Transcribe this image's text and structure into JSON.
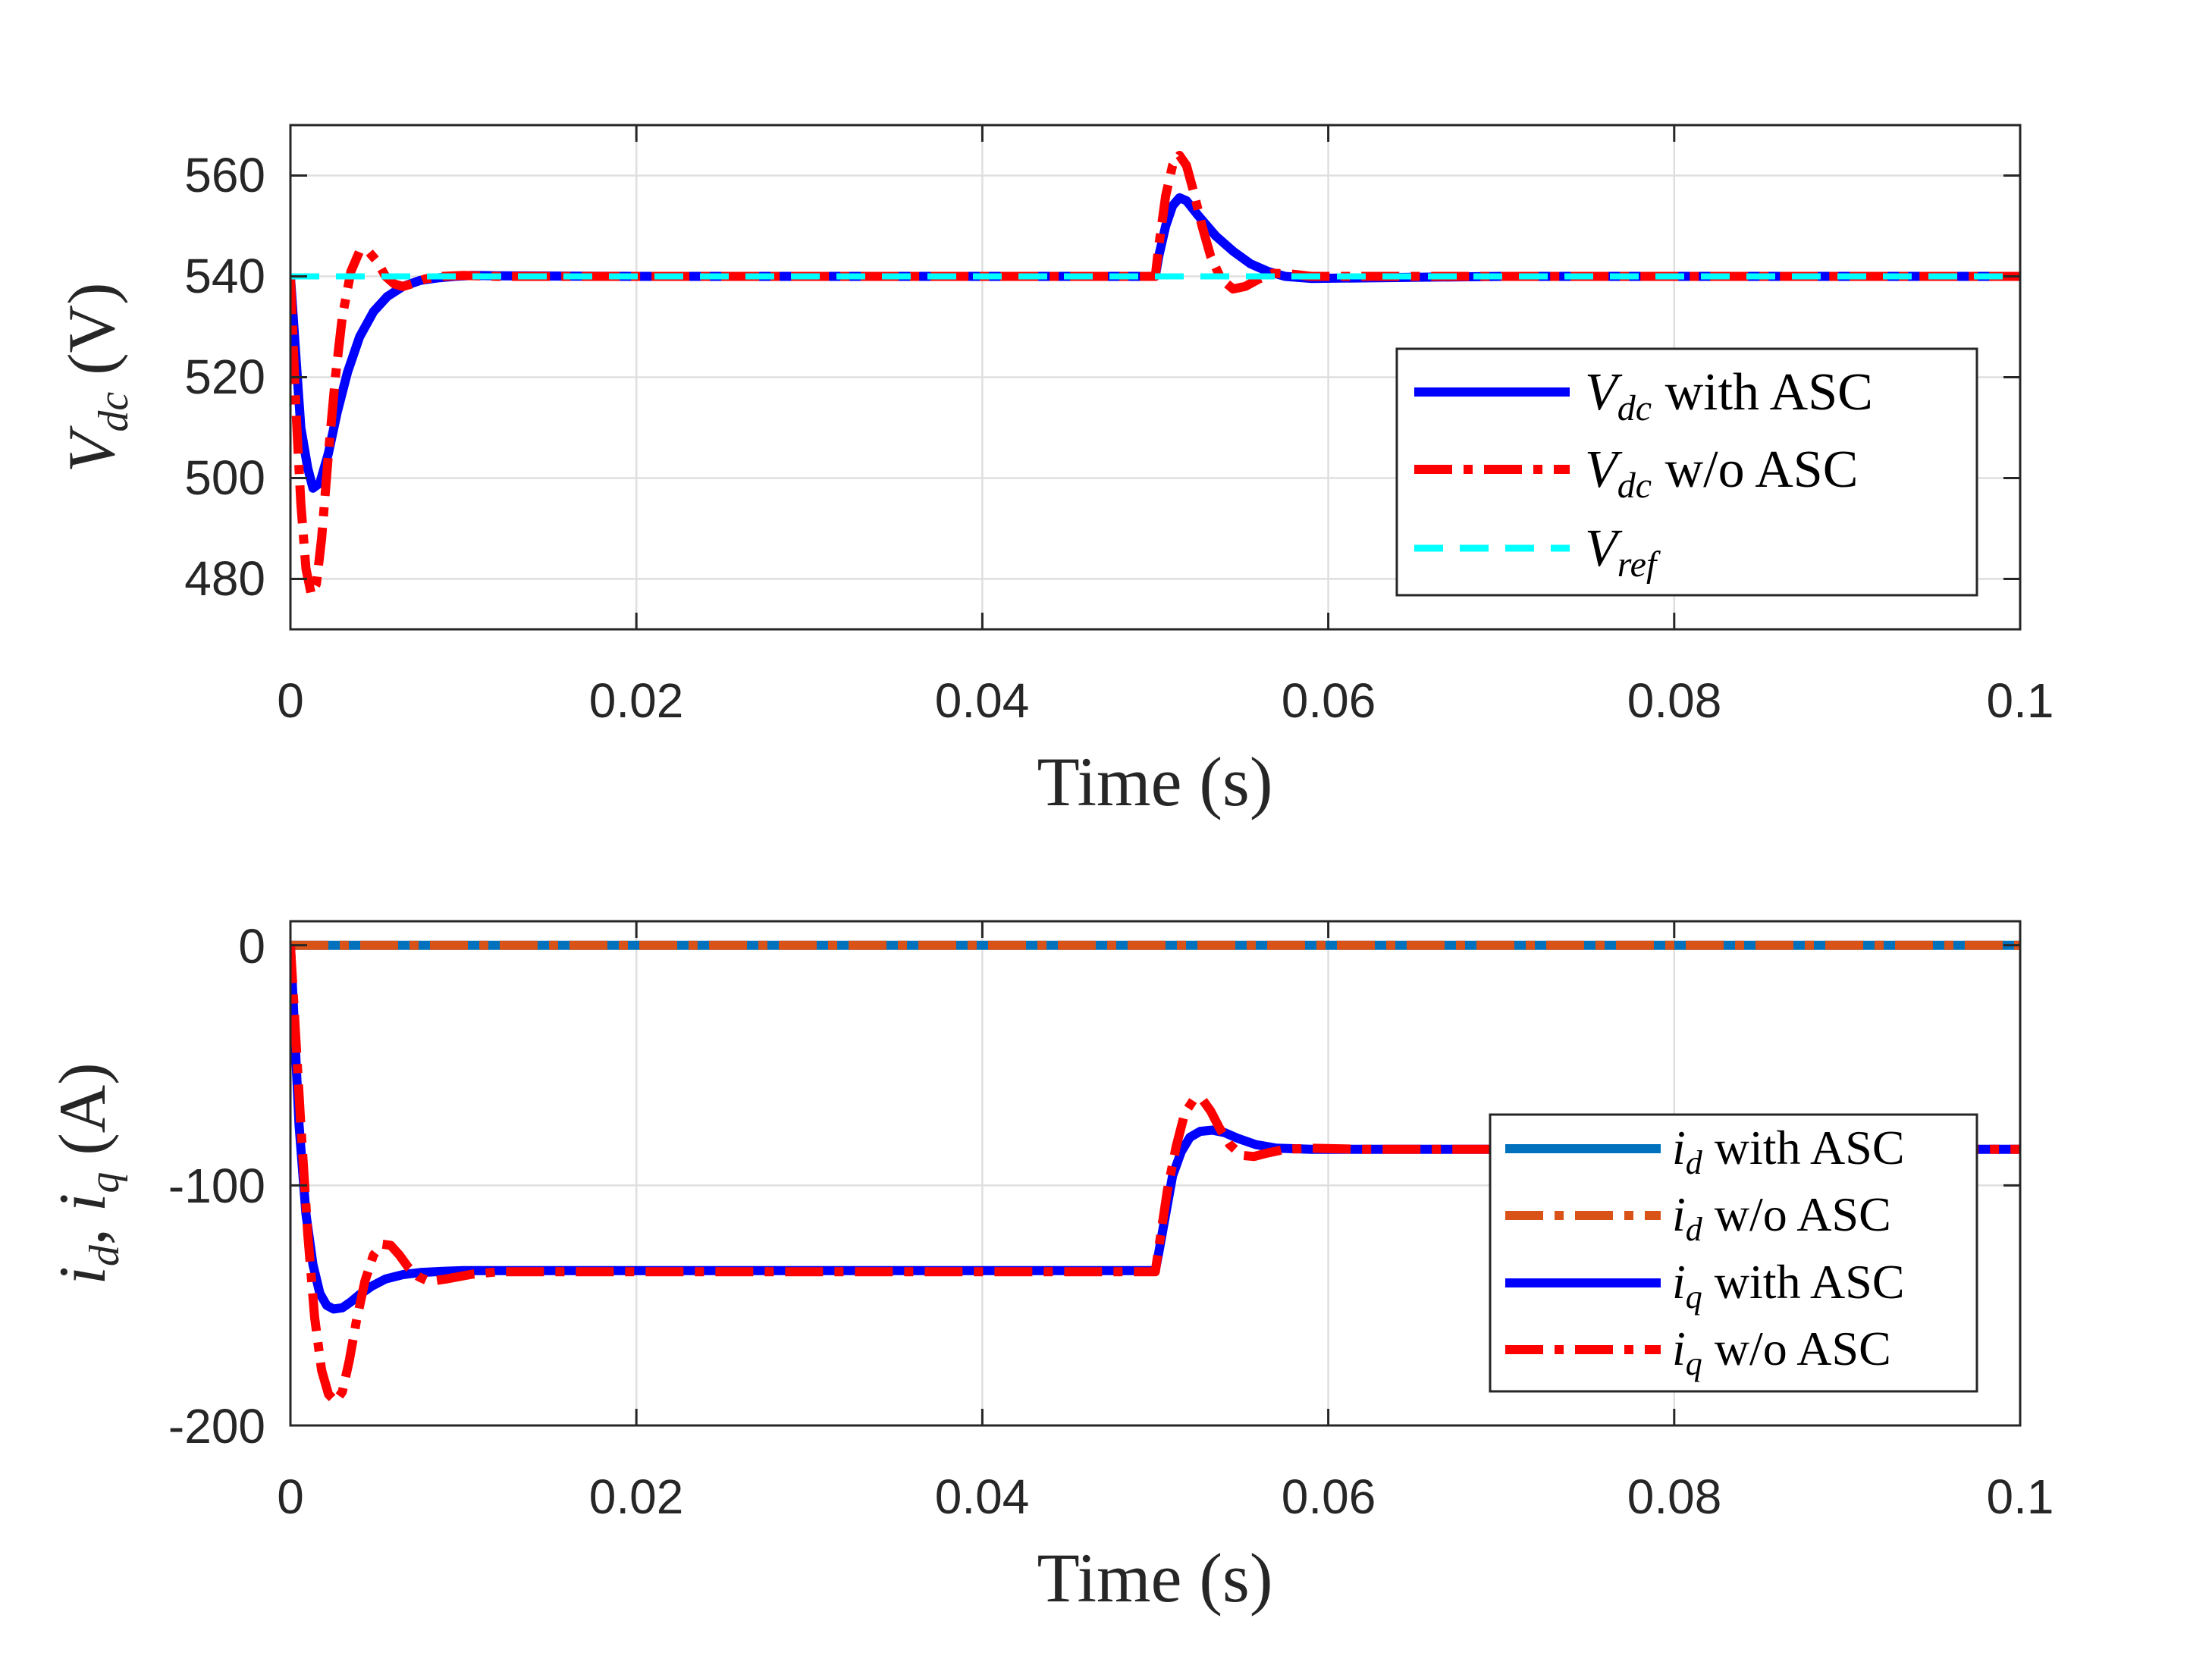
{
  "colors": {
    "vdc_with": "#0000ff",
    "vdc_wo": "#ff0000",
    "vref": "#00ffff",
    "id_with": "#0072bd",
    "id_wo": "#d95319",
    "iq_with": "#0000ff",
    "iq_wo": "#ff0000",
    "axis": "#262626",
    "grid": "#dfdfdf"
  },
  "chart_data": [
    {
      "type": "line",
      "xlabel": "Time (s)",
      "ylabel": {
        "main": "V",
        "sub": "dc",
        "unit": "(V)"
      },
      "xlim": [
        0,
        0.1
      ],
      "ylim": [
        470,
        570
      ],
      "xticks": [
        "0",
        "0.02",
        "0.04",
        "0.06",
        "0.08",
        "0.1"
      ],
      "yticks": [
        "480",
        "500",
        "520",
        "540",
        "560"
      ],
      "xtick_values": [
        0,
        0.02,
        0.04,
        0.06,
        0.08,
        0.1
      ],
      "ytick_values": [
        480,
        500,
        520,
        540,
        560
      ],
      "grid": true,
      "legend_position": "right-middle",
      "series": [
        {
          "name": "Vdc with ASC",
          "legend": {
            "sym": "V",
            "sub": "dc",
            "text": " with ASC"
          },
          "style": "solid",
          "color_key": "vdc_with",
          "x": [
            0,
            0.0003,
            0.0006,
            0.001,
            0.0013,
            0.0017,
            0.0022,
            0.0027,
            0.0033,
            0.004,
            0.0048,
            0.0056,
            0.0065,
            0.0075,
            0.0085,
            0.0095,
            0.0105,
            0.012,
            0.02,
            0.03,
            0.04,
            0.05,
            0.0502,
            0.0506,
            0.051,
            0.0514,
            0.0518,
            0.0525,
            0.0535,
            0.0545,
            0.0555,
            0.0565,
            0.0575,
            0.059,
            0.062,
            0.07,
            0.08,
            0.1
          ],
          "y": [
            540,
            525,
            510,
            502,
            498,
            499,
            505,
            513,
            521,
            528,
            533,
            536,
            538,
            539.2,
            539.7,
            540,
            540.2,
            540.1,
            540,
            540,
            540,
            540,
            544,
            550,
            554,
            555.6,
            555,
            552,
            548,
            545,
            542.5,
            541,
            540,
            539.6,
            539.7,
            540,
            540,
            540
          ]
        },
        {
          "name": "Vdc w/o ASC",
          "legend": {
            "sym": "V",
            "sub": "dc",
            "text": " w/o ASC"
          },
          "style": "dashdot",
          "color_key": "vdc_wo",
          "x": [
            0,
            0.0003,
            0.0006,
            0.0009,
            0.0012,
            0.0015,
            0.0018,
            0.0022,
            0.0026,
            0.003,
            0.0035,
            0.004,
            0.0045,
            0.005,
            0.0055,
            0.006,
            0.0065,
            0.007,
            0.0078,
            0.0088,
            0.01,
            0.012,
            0.02,
            0.03,
            0.04,
            0.05,
            0.0502,
            0.0506,
            0.051,
            0.0514,
            0.0518,
            0.0522,
            0.0527,
            0.0532,
            0.0538,
            0.0545,
            0.0552,
            0.056,
            0.0568,
            0.0578,
            0.059,
            0.062,
            0.07,
            0.08,
            0.1
          ],
          "y": [
            540,
            515,
            495,
            482,
            477,
            479,
            488,
            505,
            520,
            532,
            541,
            545,
            545,
            543,
            540,
            538.5,
            538,
            538.5,
            539.5,
            540,
            540.2,
            540,
            540,
            540,
            540,
            540,
            546,
            556,
            562,
            564,
            562,
            557,
            550,
            544,
            539.5,
            537.5,
            538,
            539.5,
            540.6,
            540.5,
            540,
            540,
            540,
            540,
            540
          ]
        },
        {
          "name": "Vref",
          "legend": {
            "sym": "V",
            "sub": "ref",
            "text": ""
          },
          "style": "dashed",
          "color_key": "vref",
          "x": [
            0,
            0.1
          ],
          "y": [
            540,
            540
          ]
        }
      ]
    },
    {
      "type": "line",
      "xlabel": "Time (s)",
      "ylabel": {
        "a": "i",
        "asub": "d",
        "sep": ", ",
        "b": "i",
        "bsub": "q",
        "unit": "(A)"
      },
      "xlim": [
        0,
        0.1
      ],
      "ylim": [
        -200,
        10
      ],
      "xticks": [
        "0",
        "0.02",
        "0.04",
        "0.06",
        "0.08",
        "0.1"
      ],
      "yticks": [
        "-200",
        "-100",
        "0"
      ],
      "xtick_values": [
        0,
        0.02,
        0.04,
        0.06,
        0.08,
        0.1
      ],
      "ytick_values": [
        -200,
        -100,
        0
      ],
      "grid": true,
      "legend_position": "right-middle",
      "series": [
        {
          "name": "id with ASC",
          "legend": {
            "sym": "i",
            "sub": "d",
            "text": " with ASC"
          },
          "style": "solid",
          "color_key": "id_with",
          "x": [
            0,
            0.1
          ],
          "y": [
            0,
            0
          ]
        },
        {
          "name": "id w/o ASC",
          "legend": {
            "sym": "i",
            "sub": "d",
            "text": " w/o ASC"
          },
          "style": "dashdot",
          "color_key": "id_wo",
          "x": [
            0,
            0.1
          ],
          "y": [
            0,
            0
          ]
        },
        {
          "name": "iq with ASC",
          "legend": {
            "sym": "i",
            "sub": "q",
            "text": " with ASC"
          },
          "style": "solid",
          "color_key": "iq_with",
          "x": [
            0,
            0.0002,
            0.0005,
            0.0009,
            0.0013,
            0.0017,
            0.0021,
            0.0025,
            0.003,
            0.0035,
            0.004,
            0.0047,
            0.0055,
            0.0065,
            0.0075,
            0.0088,
            0.01,
            0.012,
            0.02,
            0.03,
            0.04,
            0.05,
            0.0502,
            0.0506,
            0.051,
            0.0515,
            0.052,
            0.0526,
            0.0533,
            0.054,
            0.0548,
            0.0558,
            0.057,
            0.059,
            0.062,
            0.07,
            0.08,
            0.1
          ],
          "y": [
            0,
            -30,
            -75,
            -112,
            -133,
            -145,
            -150,
            -151.5,
            -151,
            -148.5,
            -145.5,
            -142,
            -139,
            -137.2,
            -136.3,
            -135.8,
            -135.5,
            -135.5,
            -135.5,
            -135.5,
            -135.5,
            -135.5,
            -128,
            -112,
            -96,
            -86,
            -80,
            -77.5,
            -77,
            -78,
            -80.5,
            -83,
            -84.5,
            -85,
            -85,
            -85,
            -85,
            -85
          ]
        },
        {
          "name": "iq w/o ASC",
          "legend": {
            "sym": "i",
            "sub": "q",
            "text": " w/o ASC"
          },
          "style": "dashdot",
          "color_key": "iq_wo",
          "x": [
            0,
            0.0002,
            0.0006,
            0.001,
            0.0014,
            0.0018,
            0.0022,
            0.0026,
            0.003,
            0.0034,
            0.0038,
            0.0043,
            0.0048,
            0.0053,
            0.0058,
            0.0063,
            0.0068,
            0.0074,
            0.008,
            0.009,
            0.0105,
            0.012,
            0.02,
            0.03,
            0.04,
            0.05,
            0.0502,
            0.0507,
            0.0512,
            0.0517,
            0.0522,
            0.0527,
            0.0532,
            0.0537,
            0.0543,
            0.055,
            0.0557,
            0.0565,
            0.0575,
            0.059,
            0.062,
            0.07,
            0.08,
            0.1
          ],
          "y": [
            0,
            -25,
            -75,
            -120,
            -155,
            -177,
            -187,
            -190,
            -186,
            -173,
            -157,
            -140,
            -129,
            -124.5,
            -125,
            -129,
            -134,
            -138,
            -140,
            -139,
            -137,
            -136,
            -136,
            -136,
            -136,
            -136,
            -126,
            -102,
            -84,
            -70,
            -64.5,
            -64,
            -69,
            -76,
            -83,
            -87.5,
            -88,
            -86.5,
            -85,
            -84.5,
            -85,
            -85,
            -85,
            -85
          ]
        }
      ]
    }
  ]
}
